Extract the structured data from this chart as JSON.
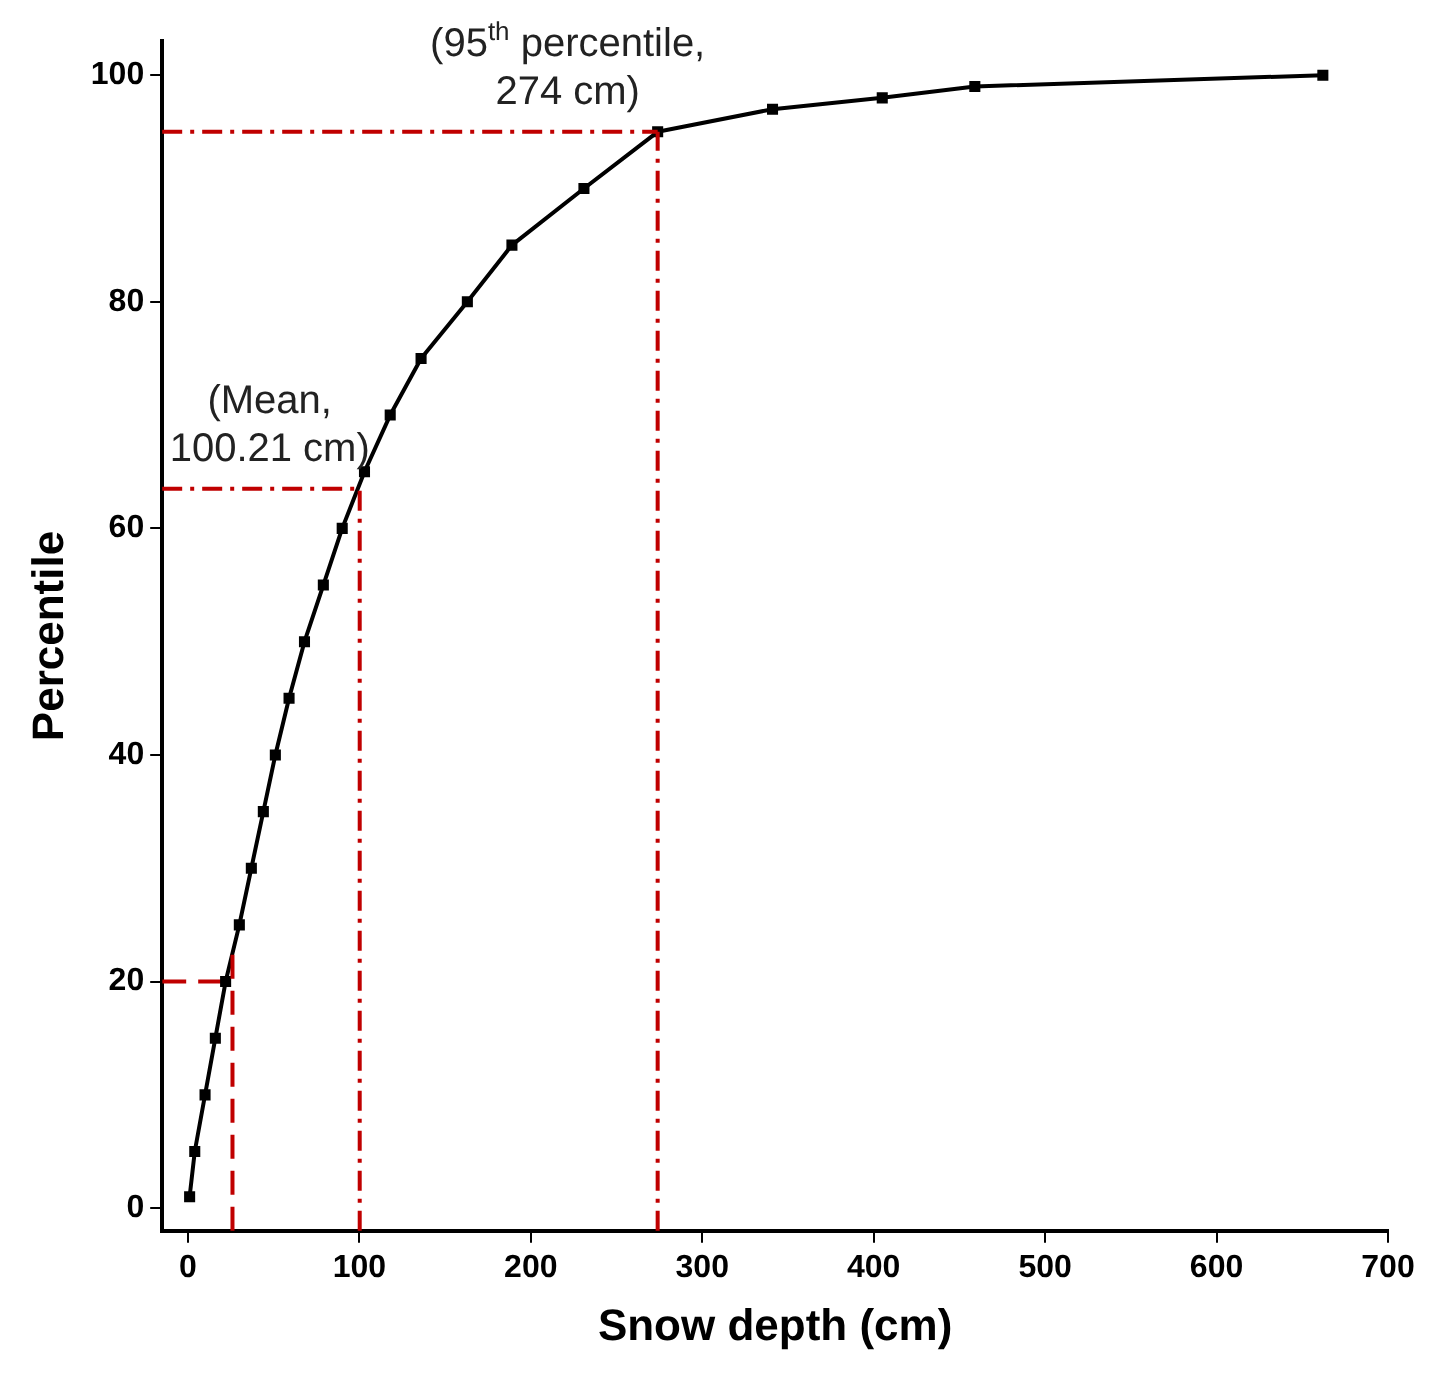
{
  "chart_data": {
    "type": "line",
    "xlabel": "Snow depth (cm)",
    "ylabel": "Percentile",
    "series": [
      {
        "color": "#000000",
        "x": [
          1,
          4,
          10,
          16,
          22,
          30,
          37,
          44,
          51,
          59,
          68,
          79,
          90,
          103,
          118,
          136,
          163,
          189,
          231,
          274,
          341,
          405,
          459,
          662
        ],
        "values": [
          1,
          5,
          10,
          15,
          20,
          25,
          30,
          35,
          40,
          45,
          50,
          55,
          60,
          65,
          70,
          75,
          80,
          85,
          90,
          95,
          97,
          98,
          99,
          100
        ]
      },
      {
        "type": "line",
        "color": "#c00000",
        "x": [
          -15,
          26
        ],
        "values": [
          20,
          20
        ],
        "line_style": "dashed",
        "marker": "none"
      }
    ],
    "xlim": [
      -15,
      700
    ],
    "xticks": [
      0,
      100,
      200,
      300,
      400,
      500,
      600,
      700
    ],
    "ylim": [
      -2,
      103
    ],
    "yticks": [
      0,
      20,
      40,
      60,
      80,
      100
    ],
    "grid": false,
    "legend": false,
    "marker": "square",
    "line_style": "solid",
    "ref_lines": [
      {
        "axis": "x",
        "value": 26,
        "color": "#c00000",
        "line_style": "dashed"
      },
      {
        "axis": "x",
        "value": 100.21,
        "color": "#c00000",
        "line_style": "dotted"
      },
      {
        "axis": "y",
        "value": 63.5,
        "color": "#c00000",
        "line_style": "dotted"
      },
      {
        "axis": "x",
        "value": 274,
        "color": "#c00000",
        "line_style": "dotted"
      },
      {
        "axis": "y",
        "value": 95,
        "color": "#c00000",
        "line_style": "dotted"
      }
    ],
    "annotations": [
      {
        "text": "(95$^{th}$ percentile,\n274 cm)",
        "x": 274,
        "y": 95
      },
      {
        "text": "(Mean,\n100.21 cm)",
        "x": 100.21,
        "y": 63.5
      }
    ]
  }
}
